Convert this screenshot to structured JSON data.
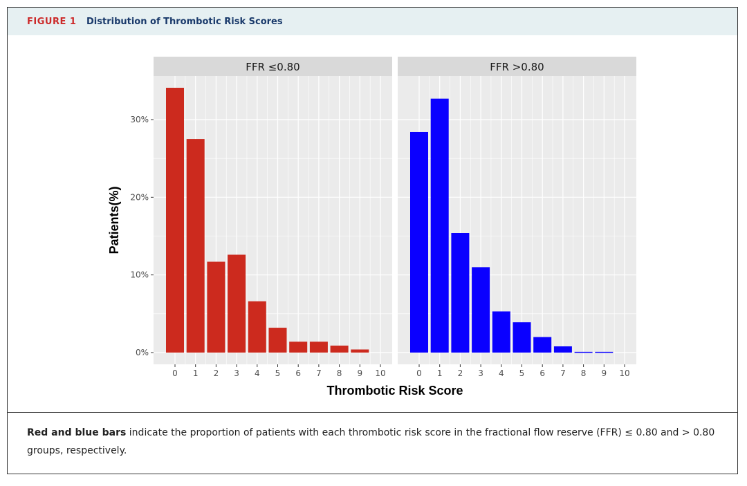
{
  "figure": {
    "label": "FIGURE 1",
    "title": "Distribution of Thrombotic Risk Scores"
  },
  "caption": {
    "bold_part": "Red and blue bars",
    "rest": " indicate the proportion of patients with each thrombotic risk score in the fractional flow reserve (FFR) ≤ 0.80 and > 0.80 groups, respectively."
  },
  "chart_data": {
    "type": "bar",
    "xlabel": "Thrombotic Risk Score",
    "ylabel": "Patients(%)",
    "ylim": [
      0,
      34.5
    ],
    "yticks": [
      0,
      10,
      20,
      30
    ],
    "ytick_labels": [
      "0%",
      "10%",
      "20%",
      "30%"
    ],
    "categories": [
      "0",
      "1",
      "2",
      "3",
      "4",
      "5",
      "6",
      "7",
      "8",
      "9",
      "10"
    ],
    "grid": true,
    "legend": "none",
    "panels": [
      {
        "name": "FFR ≤0.80",
        "color": "#cc2a1e",
        "values": [
          34.1,
          27.5,
          11.7,
          12.6,
          6.6,
          3.2,
          1.4,
          1.4,
          0.9,
          0.4,
          0
        ]
      },
      {
        "name": "FFR >0.80",
        "color": "#0a00ff",
        "values": [
          28.4,
          32.7,
          15.4,
          11.0,
          5.3,
          3.9,
          2.0,
          0.8,
          0.1,
          0.1,
          0
        ]
      }
    ]
  }
}
